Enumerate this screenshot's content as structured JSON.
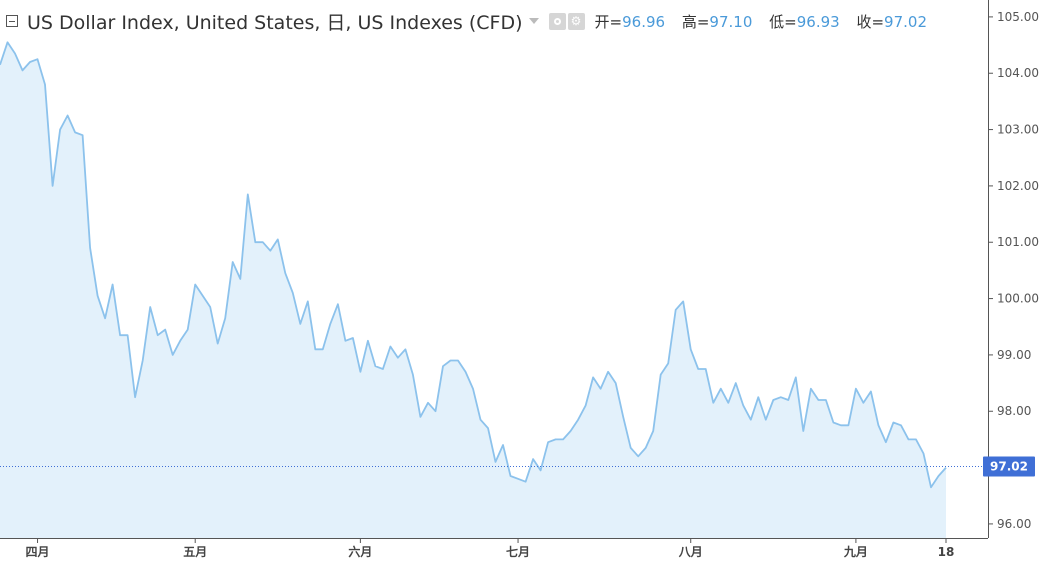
{
  "legend": {
    "title": "US Dollar Index, United States, 日, US Indexes (CFD)",
    "open_label": "开=",
    "open_value": "96.96",
    "high_label": "高=",
    "high_value": "97.10",
    "low_label": "低=",
    "low_value": "96.93",
    "close_label": "收=",
    "close_value": "97.02",
    "icons": [
      "eye-icon",
      "gear-icon"
    ]
  },
  "colors": {
    "line": "#8cc2ec",
    "fill": "#e3f1fb",
    "last_price": "#3f6fd6",
    "axis": "#555555"
  },
  "chart_data": {
    "type": "area",
    "ylim": [
      95.75,
      105.3
    ],
    "yticks": [
      "105.00",
      "104.00",
      "103.00",
      "102.00",
      "101.00",
      "100.00",
      "99.00",
      "98.00",
      "97.00",
      "96.00"
    ],
    "xticks": [
      {
        "label": "四月",
        "index": 5
      },
      {
        "label": "五月",
        "index": 26
      },
      {
        "label": "六月",
        "index": 48
      },
      {
        "label": "七月",
        "index": 69
      },
      {
        "label": "八月",
        "index": 92
      },
      {
        "label": "九月",
        "index": 114
      },
      {
        "label": "18",
        "index": 126
      }
    ],
    "last_value": "97.02",
    "values": [
      104.15,
      104.55,
      104.35,
      104.05,
      104.2,
      104.25,
      103.8,
      102.0,
      103.0,
      103.25,
      102.95,
      102.9,
      100.9,
      100.05,
      99.65,
      100.25,
      99.35,
      99.35,
      98.25,
      98.9,
      99.85,
      99.35,
      99.45,
      99.0,
      99.25,
      99.45,
      100.25,
      100.05,
      99.85,
      99.2,
      99.65,
      100.65,
      100.35,
      101.85,
      101.0,
      101.0,
      100.85,
      101.05,
      100.45,
      100.1,
      99.55,
      99.95,
      99.1,
      99.1,
      99.55,
      99.9,
      99.25,
      99.3,
      98.7,
      99.25,
      98.8,
      98.75,
      99.15,
      98.95,
      99.1,
      98.65,
      97.9,
      98.15,
      98.0,
      98.8,
      98.9,
      98.9,
      98.7,
      98.4,
      97.85,
      97.7,
      97.1,
      97.4,
      96.85,
      96.8,
      96.75,
      97.15,
      96.95,
      97.45,
      97.5,
      97.5,
      97.65,
      97.85,
      98.1,
      98.6,
      98.4,
      98.7,
      98.5,
      97.9,
      97.35,
      97.2,
      97.35,
      97.65,
      98.65,
      98.85,
      99.8,
      99.95,
      99.1,
      98.75,
      98.75,
      98.15,
      98.4,
      98.15,
      98.5,
      98.1,
      97.85,
      98.25,
      97.85,
      98.2,
      98.25,
      98.2,
      98.6,
      97.65,
      98.4,
      98.2,
      98.2,
      97.8,
      97.75,
      97.75,
      98.4,
      98.15,
      98.35,
      97.75,
      97.45,
      97.8,
      97.75,
      97.5,
      97.5,
      97.25,
      96.65,
      96.85,
      97.0
    ]
  }
}
